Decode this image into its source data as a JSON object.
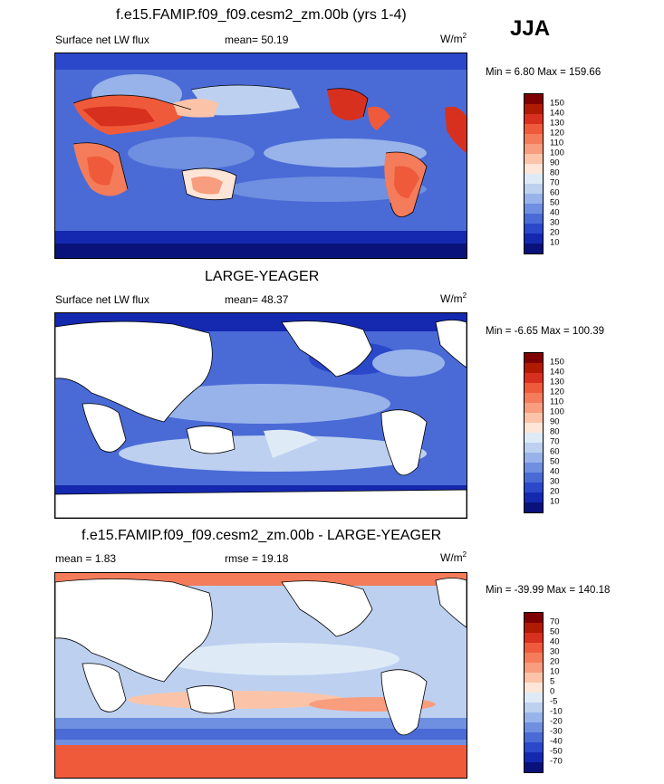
{
  "season": "JJA",
  "panels": [
    {
      "title": "f.e15.FAMIP.f09_f09.cesm2_zm.00b (yrs 1-4)",
      "left_label": "Surface net LW flux",
      "center_label": "mean=  50.19",
      "units": "W/m",
      "units_sup": "2",
      "minmax": "Min =   6.80 Max = 159.66"
    },
    {
      "title": "LARGE-YEAGER",
      "left_label": "Surface net LW flux",
      "center_label": "mean=  48.37",
      "units": "W/m",
      "units_sup": "2",
      "minmax": "Min =  -6.65 Max = 100.39"
    },
    {
      "title": "f.e15.FAMIP.f09_f09.cesm2_zm.00b - LARGE-YEAGER",
      "left_label": "mean =   1.83",
      "center_label": "rmse =  19.18",
      "units": "W/m",
      "units_sup": "2",
      "minmax": "Min = -39.99 Max = 140.18"
    }
  ],
  "colorbars": [
    {
      "labels": [
        "150",
        "140",
        "130",
        "120",
        "110",
        "100",
        "90",
        "80",
        "70",
        "60",
        "50",
        "40",
        "30",
        "20",
        "10"
      ],
      "colors": [
        "#7f0000",
        "#b01a00",
        "#d7301f",
        "#ef5a3b",
        "#f47c5a",
        "#f89d7e",
        "#fbc4a8",
        "#fde6d8",
        "#deebf7",
        "#bdd0f0",
        "#97b3ea",
        "#6f8fe0",
        "#4a6bd6",
        "#2a48c9",
        "#1428b0",
        "#08127a"
      ]
    },
    {
      "labels": [
        "150",
        "140",
        "130",
        "120",
        "110",
        "100",
        "90",
        "80",
        "70",
        "60",
        "50",
        "40",
        "30",
        "20",
        "10"
      ],
      "colors": [
        "#7f0000",
        "#b01a00",
        "#d7301f",
        "#ef5a3b",
        "#f47c5a",
        "#f89d7e",
        "#fbc4a8",
        "#fde6d8",
        "#deebf7",
        "#bdd0f0",
        "#97b3ea",
        "#6f8fe0",
        "#4a6bd6",
        "#2a48c9",
        "#1428b0",
        "#08127a"
      ]
    },
    {
      "labels": [
        "70",
        "50",
        "40",
        "30",
        "20",
        "10",
        "5",
        "0",
        "-5",
        "-10",
        "-20",
        "-30",
        "-40",
        "-50",
        "-70"
      ],
      "colors": [
        "#7f0000",
        "#b01a00",
        "#d7301f",
        "#ef5a3b",
        "#f47c5a",
        "#f89d7e",
        "#fbc4a8",
        "#fde6d8",
        "#deebf7",
        "#bdd0f0",
        "#97b3ea",
        "#6f8fe0",
        "#4a6bd6",
        "#2a48c9",
        "#1428b0",
        "#08127a"
      ]
    }
  ],
  "chart_data": [
    {
      "type": "heatmap",
      "title": "f.e15.FAMIP.f09_f09.cesm2_zm.00b (yrs 1-4)",
      "variable": "Surface net LW flux",
      "units": "W/m2",
      "mean": 50.19,
      "min": 6.8,
      "max": 159.66,
      "levels": [
        10,
        20,
        30,
        40,
        50,
        60,
        70,
        80,
        90,
        100,
        110,
        120,
        130,
        140,
        150
      ]
    },
    {
      "type": "heatmap",
      "title": "LARGE-YEAGER",
      "variable": "Surface net LW flux",
      "units": "W/m2",
      "mean": 48.37,
      "min": -6.65,
      "max": 100.39,
      "levels": [
        10,
        20,
        30,
        40,
        50,
        60,
        70,
        80,
        90,
        100,
        110,
        120,
        130,
        140,
        150
      ]
    },
    {
      "type": "heatmap",
      "title": "f.e15.FAMIP.f09_f09.cesm2_zm.00b - LARGE-YEAGER",
      "units": "W/m2",
      "mean": 1.83,
      "rmse": 19.18,
      "min": -39.99,
      "max": 140.18,
      "levels": [
        -70,
        -50,
        -40,
        -30,
        -20,
        -10,
        -5,
        0,
        5,
        10,
        20,
        30,
        40,
        50,
        70
      ]
    }
  ]
}
